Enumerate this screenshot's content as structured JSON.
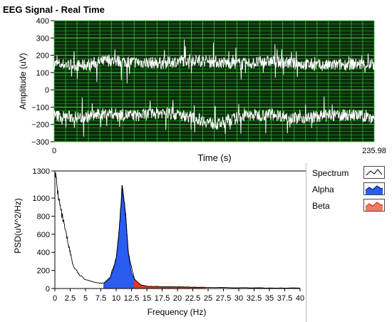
{
  "window": {
    "title": "EEG Signal - Real Time"
  },
  "top_chart": {
    "ylabel": "Amplitude (uV)",
    "xlabel": "Time (s)",
    "y_ticks": [
      "400",
      "300",
      "200",
      "100",
      "0",
      "−100",
      "−200",
      "−300"
    ],
    "x_ticks": [
      "0",
      "235.98"
    ],
    "colors": {
      "background": "#0b2b0b",
      "grid": "#2fbf2f",
      "signal": "#ffffff"
    }
  },
  "bottom_chart": {
    "ylabel": "PSD(uV^2/Hz)",
    "xlabel": "Frequency (Hz)",
    "y_ticks": [
      "1300",
      "1000",
      "800",
      "600",
      "400",
      "200",
      "0"
    ],
    "x_ticks": [
      "0",
      "2.5",
      "5",
      "7.5",
      "10",
      "12.5",
      "15",
      "17.5",
      "20",
      "22.5",
      "25",
      "27.5",
      "30",
      "32.5",
      "35",
      "37.5",
      "40"
    ],
    "colors": {
      "spectrum": "#000000",
      "alpha": "#2a5cf0",
      "beta": "#e8341c"
    }
  },
  "legend": {
    "items": [
      {
        "label": "Spectrum",
        "icon": "spectrum-line-icon",
        "color": "#000000"
      },
      {
        "label": "Alpha",
        "icon": "alpha-area-icon",
        "color": "#2a5cf0"
      },
      {
        "label": "Beta",
        "icon": "beta-area-icon",
        "color": "#e8341c"
      }
    ]
  },
  "chart_data": [
    {
      "type": "line",
      "title": "EEG Signal - Real Time",
      "xlabel": "Time (s)",
      "ylabel": "Amplitude (uV)",
      "xlim": [
        0,
        235.98
      ],
      "ylim": [
        -300,
        400
      ],
      "grid": true,
      "series": [
        {
          "x": [
            0,
            20,
            40,
            60,
            80,
            100,
            120,
            140,
            160,
            180,
            200,
            220,
            235.98
          ],
          "y": [
            150,
            140,
            170,
            160,
            155,
            175,
            160,
            150,
            165,
            150,
            140,
            150,
            145
          ]
        },
        {
          "x": [
            0,
            20,
            40,
            60,
            80,
            100,
            120,
            140,
            160,
            180,
            200,
            220,
            235.98
          ],
          "y": [
            -150,
            -160,
            -135,
            -150,
            -130,
            -155,
            -200,
            -150,
            -140,
            -165,
            -150,
            -145,
            -160
          ]
        }
      ]
    },
    {
      "type": "area",
      "xlabel": "Frequency (Hz)",
      "ylabel": "PSD(uV^2/Hz)",
      "xlim": [
        0,
        40
      ],
      "ylim": [
        0,
        1300
      ],
      "grid": false,
      "legend": "right",
      "series": [
        {
          "name": "Spectrum",
          "x": [
            0,
            0.5,
            1,
            1.5,
            2,
            2.5,
            3,
            4,
            5,
            6,
            7,
            8,
            9,
            10,
            10.5,
            11,
            11.5,
            12,
            13,
            14,
            15,
            17.5,
            20,
            22.5,
            25,
            30,
            35,
            40
          ],
          "y": [
            1300,
            1050,
            850,
            700,
            550,
            400,
            250,
            150,
            100,
            80,
            60,
            60,
            120,
            330,
            650,
            1140,
            850,
            380,
            100,
            40,
            25,
            20,
            18,
            15,
            12,
            8,
            6,
            5
          ]
        },
        {
          "name": "Alpha",
          "x": [
            8,
            8.5,
            9,
            9.5,
            10,
            10.5,
            11,
            11.5,
            12,
            12.5,
            13
          ],
          "y": [
            60,
            80,
            120,
            200,
            330,
            650,
            1140,
            850,
            380,
            170,
            100
          ]
        },
        {
          "name": "Beta",
          "x": [
            13,
            14,
            15,
            16,
            17.5,
            20,
            22.5,
            24.5
          ],
          "y": [
            100,
            40,
            25,
            22,
            20,
            18,
            15,
            12
          ]
        }
      ]
    }
  ]
}
